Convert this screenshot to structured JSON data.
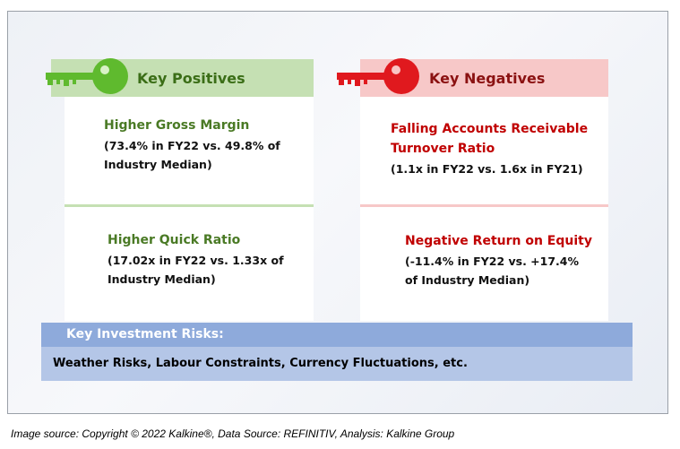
{
  "positives": {
    "heading": "Key Positives",
    "items": [
      {
        "title": "Higher Gross Margin",
        "detail_lines": [
          "(73.4% in FY22 vs. 49.8% of",
          "Industry Median)"
        ]
      },
      {
        "title": "Higher Quick Ratio",
        "detail_lines": [
          "(17.02x in FY22 vs. 1.33x of",
          "Industry Median)"
        ]
      }
    ]
  },
  "negatives": {
    "heading": "Key Negatives",
    "items": [
      {
        "title_lines": [
          "Falling Accounts Receivable",
          "Turnover Ratio"
        ],
        "detail_lines": [
          "(1.1x in FY22 vs. 1.6x in FY21)"
        ]
      },
      {
        "title": "Negative Return on Equity",
        "detail_lines": [
          "(-11.4% in FY22 vs. +17.4%",
          "of Industry Median)"
        ]
      }
    ]
  },
  "risks": {
    "heading": "Key Investment Risks:",
    "text": "Weather Risks, Labour Constraints, Currency Fluctuations, etc."
  },
  "footer": "Image source: Copyright © 2022 Kalkine®, Data Source: REFINITIV, Analysis: Kalkine Group",
  "colors": {
    "positive_header": "#c5e0b3",
    "positive_text": "#4a7a25",
    "positive_key": "#5fba2e",
    "negative_header": "#f7c8c8",
    "negative_text": "#c00000",
    "negative_key": "#e0191e",
    "risk_header": "#8eaadb",
    "risk_body": "#b4c6e7"
  },
  "icons": [
    "green-key-icon",
    "red-key-icon"
  ]
}
